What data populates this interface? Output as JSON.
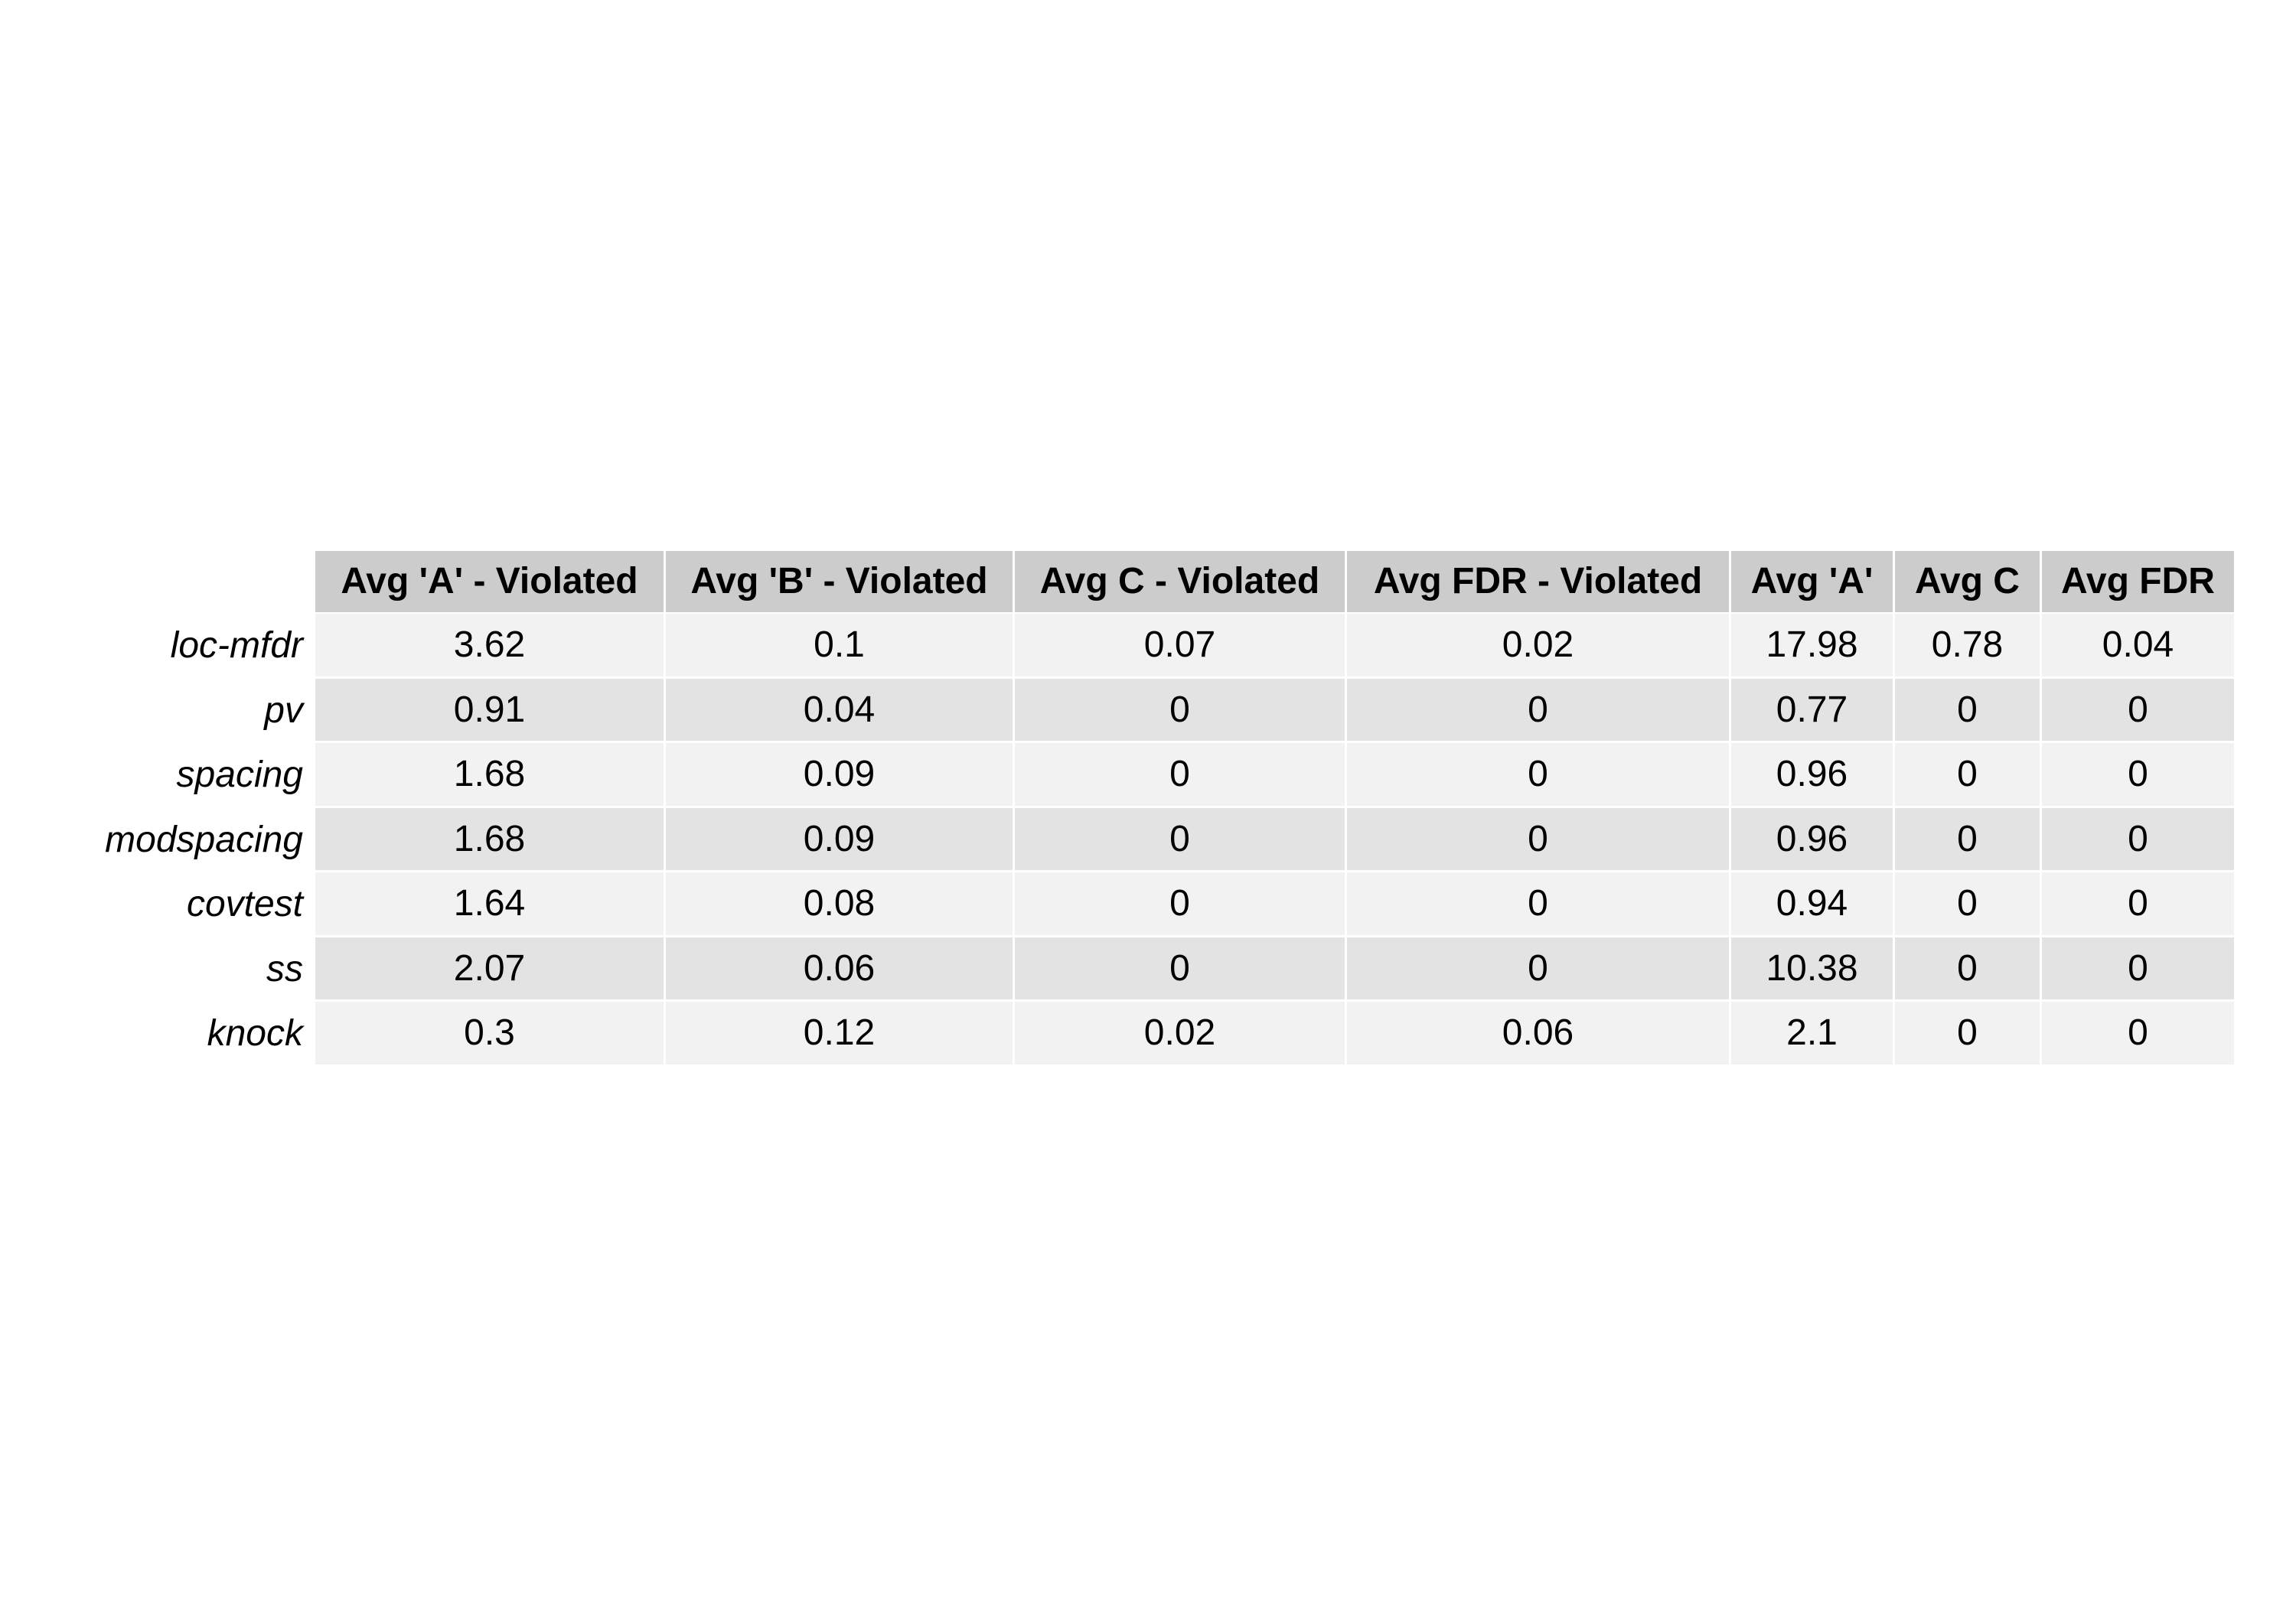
{
  "chart_data": {
    "type": "table",
    "columns": [
      "Avg 'A' - Violated",
      "Avg 'B' - Violated",
      "Avg C - Violated",
      "Avg FDR - Violated",
      "Avg 'A'",
      "Avg C",
      "Avg FDR"
    ],
    "rows": [
      {
        "label": "loc-mfdr",
        "values": [
          "3.62",
          "0.1",
          "0.07",
          "0.02",
          "17.98",
          "0.78",
          "0.04"
        ]
      },
      {
        "label": "pv",
        "values": [
          "0.91",
          "0.04",
          "0",
          "0",
          "0.77",
          "0",
          "0"
        ]
      },
      {
        "label": "spacing",
        "values": [
          "1.68",
          "0.09",
          "0",
          "0",
          "0.96",
          "0",
          "0"
        ]
      },
      {
        "label": "modspacing",
        "values": [
          "1.68",
          "0.09",
          "0",
          "0",
          "0.96",
          "0",
          "0"
        ]
      },
      {
        "label": "covtest",
        "values": [
          "1.64",
          "0.08",
          "0",
          "0",
          "0.94",
          "0",
          "0"
        ]
      },
      {
        "label": "ss",
        "values": [
          "2.07",
          "0.06",
          "0",
          "0",
          "10.38",
          "0",
          "0"
        ]
      },
      {
        "label": "knock",
        "values": [
          "0.3",
          "0.12",
          "0.02",
          "0.06",
          "2.1",
          "0",
          "0"
        ]
      }
    ],
    "colors": {
      "header_bg": "#cccccc",
      "row_light": "#f2f2f2",
      "row_dark": "#e3e3e3",
      "grid": "#ffffff"
    }
  }
}
